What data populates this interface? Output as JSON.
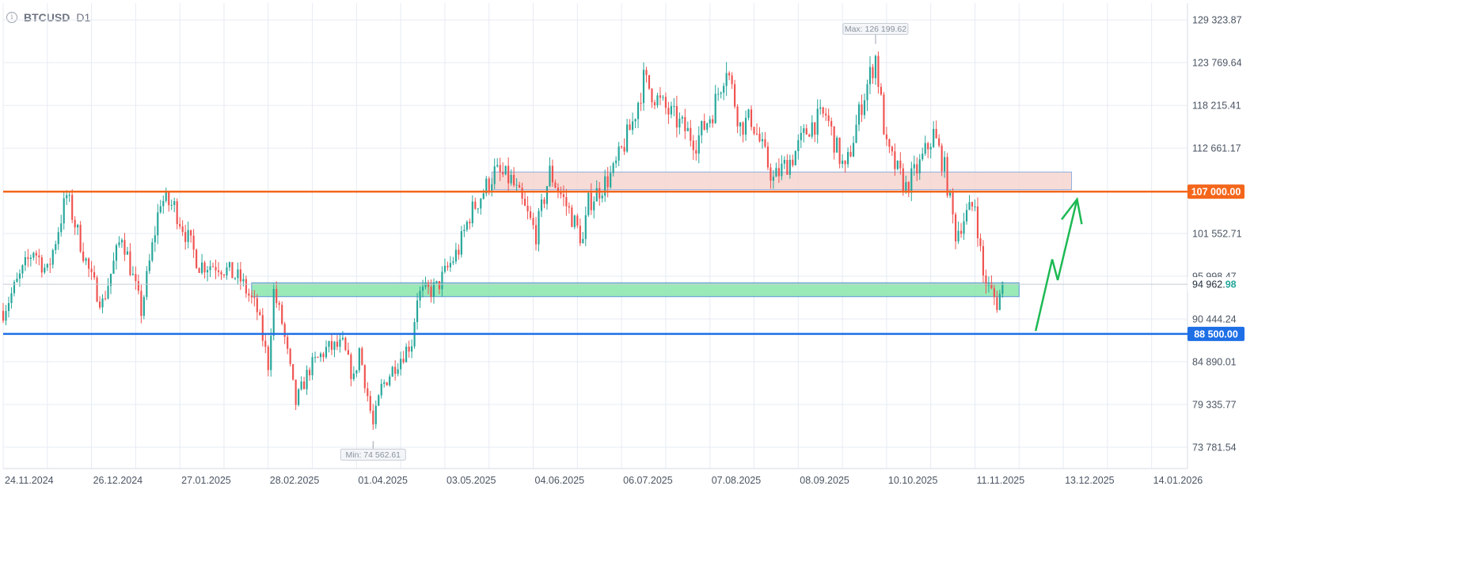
{
  "header": {
    "symbol": "BTCUSD",
    "interval": "D1",
    "info_icon": "info-icon"
  },
  "colors": {
    "up": "#26a69a",
    "down": "#ef5350",
    "resistance_line": "#f4661b",
    "support_line": "#1e6fe6",
    "resistance_zone_fill": "#f6d5cf",
    "resistance_zone_stroke": "#8eaee0",
    "support_zone_fill": "#8fe8b0",
    "support_zone_stroke": "#5a94d6",
    "forecast_arrow": "#1db954",
    "grid": "#e6ebf3",
    "axis_text": "#4b5563"
  },
  "chart_data": {
    "type": "candlestick",
    "title": "",
    "ylim": [
      71000,
      131500
    ],
    "y_ticks": [
      {
        "value": 129323.87,
        "label": "129 323.87"
      },
      {
        "value": 123769.64,
        "label": "123 769.64"
      },
      {
        "value": 118215.41,
        "label": "118 215.41"
      },
      {
        "value": 112661.17,
        "label": "112 661.17"
      },
      {
        "value": 101552.71,
        "label": "101 552.71"
      },
      {
        "value": 95998.47,
        "label": "95 998.47"
      },
      {
        "value": 90444.24,
        "label": "90 444.24"
      },
      {
        "value": 84890.01,
        "label": "84 890.01"
      },
      {
        "value": 79335.77,
        "label": "79 335.77"
      },
      {
        "value": 73781.54,
        "label": "73 781.54"
      }
    ],
    "x_ticks": [
      "24.11.2024",
      "26.12.2024",
      "27.01.2025",
      "28.02.2025",
      "01.04.2025",
      "03.05.2025",
      "04.06.2025",
      "06.07.2025",
      "07.08.2025",
      "08.09.2025",
      "10.10.2025",
      "11.11.2025",
      "13.12.2025",
      "14.01.2026"
    ],
    "x_range": [
      "2024-11-24",
      "2026-01-27"
    ],
    "last_price": {
      "value": 94962.98,
      "label_main": "94 962.",
      "label_decimal": "98"
    },
    "levels": [
      {
        "value": 107000.0,
        "label": "107 000.00",
        "color": "#f4661b"
      },
      {
        "value": 88500.0,
        "label": "88 500.00",
        "color": "#1e6fe6"
      }
    ],
    "zones": [
      {
        "name": "resistance-zone",
        "from": "2025-05-20",
        "to": "2025-12-16",
        "low": 107250,
        "high": 109550
      },
      {
        "name": "support-zone",
        "from": "2025-02-22",
        "to": "2025-11-27",
        "low": 93350,
        "high": 95150
      }
    ],
    "max_marker": {
      "date": "2025-10-06",
      "value": 126199.62,
      "label": "Max: 126 199.62"
    },
    "min_marker": {
      "date": "2025-04-07",
      "value": 74562.61,
      "label": "Min: 74 562.61"
    },
    "forecast_path": [
      {
        "date": "2025-12-03",
        "value": 88900
      },
      {
        "date": "2025-12-09",
        "value": 98200
      },
      {
        "date": "2025-12-11",
        "value": 95500
      },
      {
        "date": "2025-12-18",
        "value": 106000
      }
    ],
    "ohlc_anchors": [
      [
        "2024-11-24",
        91500
      ],
      [
        "2024-12-05",
        99500
      ],
      [
        "2024-12-10",
        96500
      ],
      [
        "2024-12-17",
        106500
      ],
      [
        "2024-12-26",
        95500
      ],
      [
        "2024-12-30",
        92500
      ],
      [
        "2025-01-06",
        101500
      ],
      [
        "2025-01-13",
        91500
      ],
      [
        "2025-01-20",
        106000
      ],
      [
        "2025-01-25",
        105000
      ],
      [
        "2025-02-03",
        97500
      ],
      [
        "2025-02-10",
        97500
      ],
      [
        "2025-02-18",
        95500
      ],
      [
        "2025-02-24",
        91500
      ],
      [
        "2025-02-28",
        84500
      ],
      [
        "2025-03-02",
        94000
      ],
      [
        "2025-03-05",
        90000
      ],
      [
        "2025-03-10",
        79500
      ],
      [
        "2025-03-15",
        84000
      ],
      [
        "2025-03-21",
        86500
      ],
      [
        "2025-03-27",
        87000
      ],
      [
        "2025-03-31",
        82500
      ],
      [
        "2025-04-02",
        86500
      ],
      [
        "2025-04-07",
        76500
      ],
      [
        "2025-04-10",
        81500
      ],
      [
        "2025-04-15",
        84500
      ],
      [
        "2025-04-21",
        87500
      ],
      [
        "2025-04-23",
        93500
      ],
      [
        "2025-04-30",
        94500
      ],
      [
        "2025-05-08",
        99500
      ],
      [
        "2025-05-12",
        104000
      ],
      [
        "2025-05-21",
        109500
      ],
      [
        "2025-05-27",
        108500
      ],
      [
        "2025-06-05",
        101500
      ],
      [
        "2025-06-10",
        109500
      ],
      [
        "2025-06-17",
        104500
      ],
      [
        "2025-06-22",
        100500
      ],
      [
        "2025-06-24",
        105500
      ],
      [
        "2025-07-03",
        109500
      ],
      [
        "2025-07-10",
        116000
      ],
      [
        "2025-07-14",
        121500
      ],
      [
        "2025-07-20",
        118500
      ],
      [
        "2025-08-02",
        113500
      ],
      [
        "2025-08-08",
        117500
      ],
      [
        "2025-08-13",
        123500
      ],
      [
        "2025-08-18",
        115500
      ],
      [
        "2025-08-22",
        116500
      ],
      [
        "2025-08-30",
        108500
      ],
      [
        "2025-09-01",
        109500
      ],
      [
        "2025-09-06",
        111500
      ],
      [
        "2025-09-12",
        115500
      ],
      [
        "2025-09-18",
        117000
      ],
      [
        "2025-09-22",
        112500
      ],
      [
        "2025-09-25",
        109500
      ],
      [
        "2025-10-01",
        118500
      ],
      [
        "2025-10-06",
        124500
      ],
      [
        "2025-10-10",
        112500
      ],
      [
        "2025-10-17",
        107500
      ],
      [
        "2025-10-22",
        110500
      ],
      [
        "2025-10-27",
        114500
      ],
      [
        "2025-10-31",
        110000
      ],
      [
        "2025-11-04",
        101500
      ],
      [
        "2025-11-07",
        103500
      ],
      [
        "2025-11-11",
        105500
      ],
      [
        "2025-11-14",
        96000
      ],
      [
        "2025-11-19",
        92500
      ],
      [
        "2025-11-21",
        94800
      ]
    ]
  }
}
